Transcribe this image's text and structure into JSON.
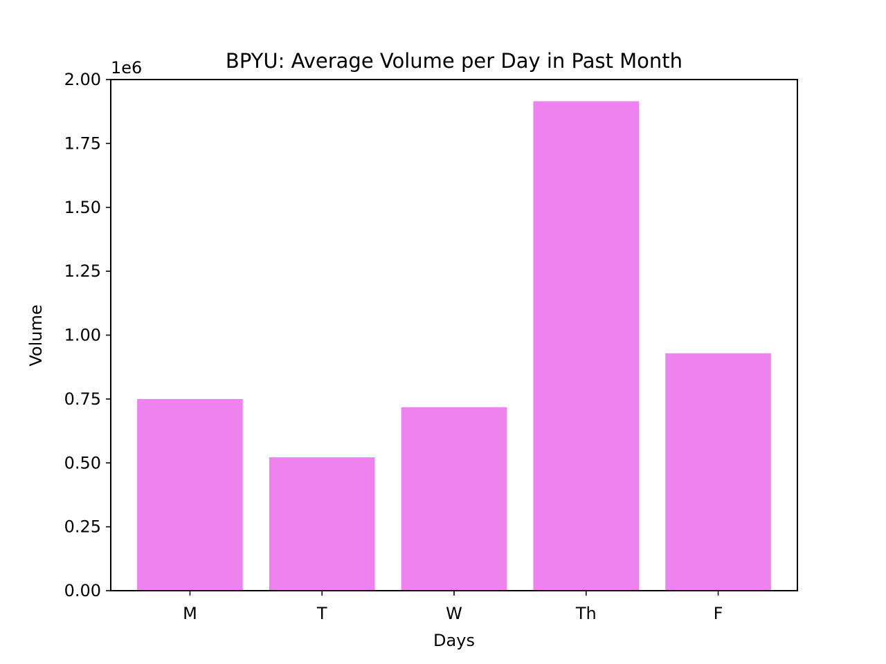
{
  "chart_data": {
    "type": "bar",
    "title": "BPYU: Average Volume per Day in Past Month",
    "xlabel": "Days",
    "ylabel": "Volume",
    "y_offset_label": "1e6",
    "categories": [
      "M",
      "T",
      "W",
      "Th",
      "F"
    ],
    "values": [
      750000,
      522000,
      718000,
      1915000,
      929000
    ],
    "ylim": [
      0,
      2000000
    ],
    "y_ticks": [
      0,
      250000,
      500000,
      750000,
      1000000,
      1250000,
      1500000,
      1750000,
      2000000
    ],
    "y_tick_labels": [
      "0.00",
      "0.25",
      "0.50",
      "0.75",
      "1.00",
      "1.25",
      "1.50",
      "1.75",
      "2.00"
    ],
    "bar_color": "#ee82ee",
    "grid": false,
    "legend": "none"
  }
}
